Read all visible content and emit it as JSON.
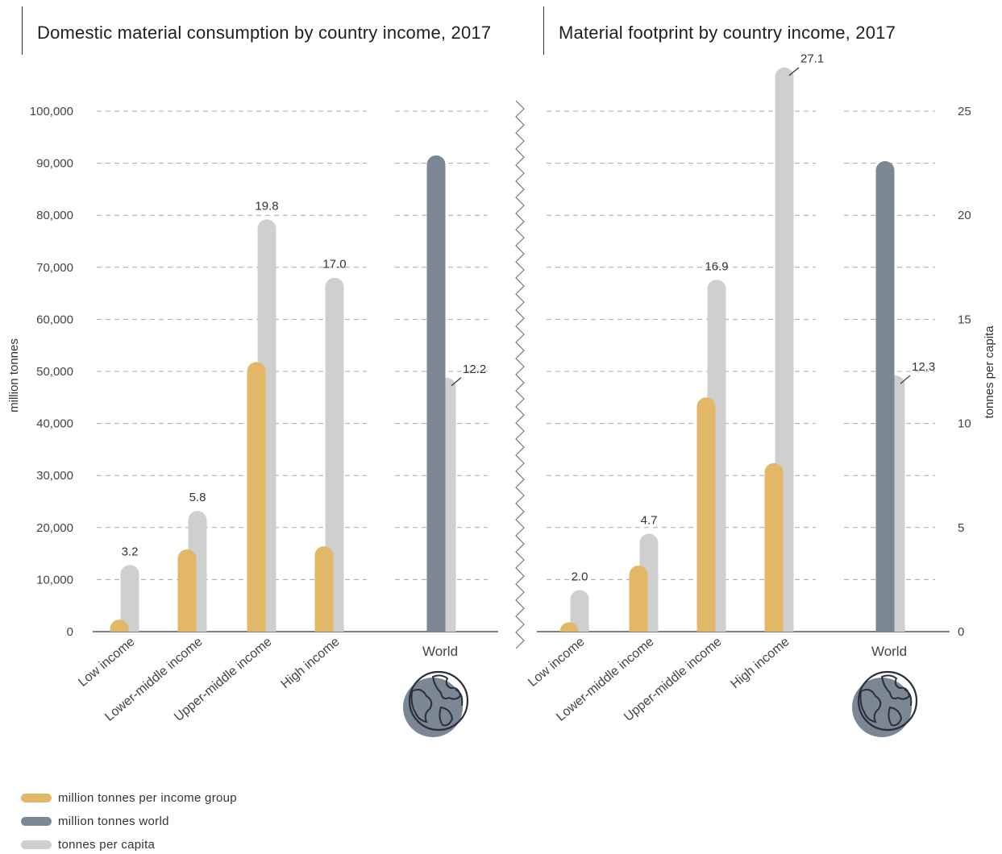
{
  "chart_data": [
    {
      "type": "bar",
      "title": "Domestic material consumption by country income, 2017",
      "categories": [
        "Low income",
        "Lower-middle income",
        "Upper-middle income",
        "High income",
        "World"
      ],
      "ylabel": "million tonnes",
      "y2label": "tonnes per capita",
      "ylim": [
        0,
        100000
      ],
      "y2lim": [
        0,
        25
      ],
      "yticks": [
        "0",
        "10,000",
        "20,000",
        "30,000",
        "40,000",
        "50,000",
        "60,000",
        "70,000",
        "80,000",
        "90,000",
        "100,000"
      ],
      "series": [
        {
          "name": "million tonnes per income group",
          "values": [
            2300,
            15800,
            51800,
            16400,
            null
          ],
          "color": "#e3b768"
        },
        {
          "name": "million tonnes world",
          "values": [
            null,
            null,
            null,
            null,
            91500
          ],
          "color": "#7b8795"
        },
        {
          "name": "tonnes per capita",
          "values": [
            3.2,
            5.8,
            19.8,
            17.0,
            12.2
          ],
          "labels": [
            "3.2",
            "5.8",
            "19.8",
            "17.0",
            "12.2"
          ],
          "color": "#cfcfcf"
        }
      ],
      "grid": true
    },
    {
      "type": "bar",
      "title": "Material footprint by country income, 2017",
      "categories": [
        "Low income",
        "Lower-middle income",
        "Upper-middle income",
        "High income",
        "World"
      ],
      "ylabel": "million tonnes",
      "y2label": "tonnes per capita",
      "ylim": [
        0,
        100000
      ],
      "y2lim": [
        0,
        25
      ],
      "y2ticks": [
        "0",
        "5",
        "10",
        "15",
        "20",
        "25"
      ],
      "series": [
        {
          "name": "million tonnes per income group",
          "values": [
            1800,
            12700,
            45000,
            32400,
            null
          ],
          "color": "#e3b768"
        },
        {
          "name": "million tonnes world",
          "values": [
            null,
            null,
            null,
            null,
            90400
          ],
          "color": "#7b8795"
        },
        {
          "name": "tonnes per capita",
          "values": [
            2.0,
            4.7,
            16.9,
            27.1,
            12.3
          ],
          "labels": [
            "2.0",
            "4.7",
            "16.9",
            "27.1",
            "12.3"
          ],
          "color": "#cfcfcf"
        }
      ],
      "grid": true
    }
  ],
  "legend": [
    {
      "label": "million tonnes per income group",
      "color": "#e3b768"
    },
    {
      "label": "million tonnes world",
      "color": "#7b8795"
    },
    {
      "label": "tonnes per capita",
      "color": "#cfcfcf"
    }
  ],
  "icons": [
    "globe-icon"
  ]
}
